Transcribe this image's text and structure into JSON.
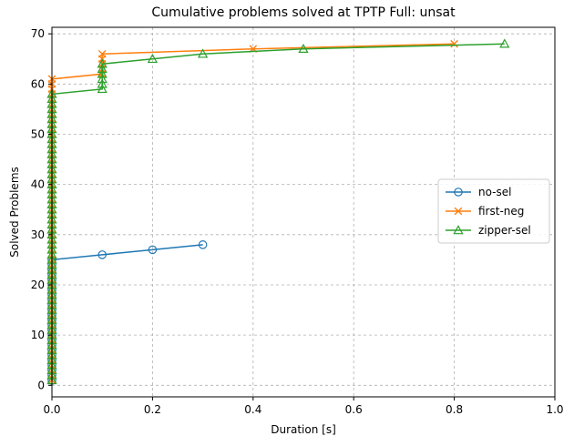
{
  "chart_data": {
    "type": "line",
    "title": "Cumulative problems solved at TPTP Full: unsat",
    "xlabel": "Duration [s]",
    "ylabel": "Solved Problems",
    "xlim": [
      0.0,
      1.0
    ],
    "ylim": [
      -2.3,
      71.3
    ],
    "xticks": [
      0.0,
      0.2,
      0.4,
      0.6,
      0.8,
      1.0
    ],
    "xtick_labels": [
      "0.0",
      "0.2",
      "0.4",
      "0.6",
      "0.8",
      "1.0"
    ],
    "yticks": [
      0,
      10,
      20,
      30,
      40,
      50,
      60,
      70
    ],
    "ytick_labels": [
      "0",
      "10",
      "20",
      "30",
      "40",
      "50",
      "60",
      "70"
    ],
    "grid": true,
    "legend_position": "center-right",
    "series": [
      {
        "name": "no-sel",
        "color": "#1f77b4",
        "marker": "circle",
        "x": [
          0,
          0,
          0,
          0,
          0,
          0,
          0,
          0,
          0,
          0,
          0,
          0,
          0,
          0,
          0,
          0,
          0,
          0,
          0,
          0,
          0,
          0,
          0,
          0,
          0,
          0.1,
          0.2,
          0.3
        ],
        "y": [
          1,
          2,
          3,
          4,
          5,
          6,
          7,
          8,
          9,
          10,
          11,
          12,
          13,
          14,
          15,
          16,
          17,
          18,
          19,
          20,
          21,
          22,
          23,
          24,
          25,
          26,
          27,
          28
        ]
      },
      {
        "name": "first-neg",
        "color": "#ff7f0e",
        "marker": "x",
        "x": [
          0,
          0,
          0,
          0,
          0,
          0,
          0,
          0,
          0,
          0,
          0,
          0,
          0,
          0,
          0,
          0,
          0,
          0,
          0,
          0,
          0,
          0,
          0,
          0,
          0,
          0,
          0,
          0,
          0,
          0,
          0,
          0,
          0,
          0,
          0,
          0,
          0,
          0,
          0,
          0,
          0,
          0,
          0,
          0,
          0,
          0,
          0,
          0,
          0,
          0,
          0,
          0,
          0,
          0,
          0,
          0,
          0,
          0,
          0,
          0,
          0,
          0.1,
          0.1,
          0.1,
          0.1,
          0.1,
          0.4,
          0.8
        ],
        "y": [
          1,
          2,
          3,
          4,
          5,
          6,
          7,
          8,
          9,
          10,
          11,
          12,
          13,
          14,
          15,
          16,
          17,
          18,
          19,
          20,
          21,
          22,
          23,
          24,
          25,
          26,
          27,
          28,
          29,
          30,
          31,
          32,
          33,
          34,
          35,
          36,
          37,
          38,
          39,
          40,
          41,
          42,
          43,
          44,
          45,
          46,
          47,
          48,
          49,
          50,
          51,
          52,
          53,
          54,
          55,
          56,
          57,
          58,
          59,
          60,
          61,
          62,
          63,
          64,
          65,
          66,
          67,
          68
        ]
      },
      {
        "name": "zipper-sel",
        "color": "#2ca02c",
        "marker": "triangle",
        "x": [
          0,
          0,
          0,
          0,
          0,
          0,
          0,
          0,
          0,
          0,
          0,
          0,
          0,
          0,
          0,
          0,
          0,
          0,
          0,
          0,
          0,
          0,
          0,
          0,
          0,
          0,
          0,
          0,
          0,
          0,
          0,
          0,
          0,
          0,
          0,
          0,
          0,
          0,
          0,
          0,
          0,
          0,
          0,
          0,
          0,
          0,
          0,
          0,
          0,
          0,
          0,
          0,
          0,
          0,
          0,
          0,
          0,
          0,
          0.1,
          0.1,
          0.1,
          0.1,
          0.1,
          0.1,
          0.2,
          0.3,
          0.5,
          0.9
        ],
        "y": [
          1,
          2,
          3,
          4,
          5,
          6,
          7,
          8,
          9,
          10,
          11,
          12,
          13,
          14,
          15,
          16,
          17,
          18,
          19,
          20,
          21,
          22,
          23,
          24,
          25,
          26,
          27,
          28,
          29,
          30,
          31,
          32,
          33,
          34,
          35,
          36,
          37,
          38,
          39,
          40,
          41,
          42,
          43,
          44,
          45,
          46,
          47,
          48,
          49,
          50,
          51,
          52,
          53,
          54,
          55,
          56,
          57,
          58,
          59,
          60,
          61,
          62,
          63,
          64,
          65,
          66,
          67,
          68
        ]
      }
    ]
  }
}
